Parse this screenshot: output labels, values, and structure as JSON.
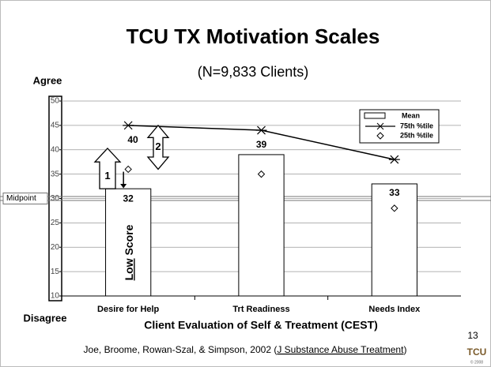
{
  "chart_data": {
    "type": "bar",
    "title": "TCU TX Motivation Scales",
    "subtitle": "(N=9,833 Clients)",
    "y_top_label": "Agree",
    "y_bottom_label": "Disagree",
    "x_label": "Client Evaluation of Self & Treatment (CEST)",
    "categories": [
      "Desire for Help",
      "Trt Readiness",
      "Needs Index"
    ],
    "series": [
      {
        "name": "Mean",
        "color": "#ffffff",
        "values": [
          32,
          39,
          33
        ]
      },
      {
        "name": "75th %tile",
        "color": "#000000",
        "values": [
          45,
          44,
          38
        ]
      },
      {
        "name": "25th %tile",
        "color": "#000000",
        "values": [
          36,
          35,
          28
        ]
      }
    ],
    "ylim": [
      10,
      50
    ],
    "yticks": [
      10,
      15,
      20,
      25,
      30,
      35,
      40,
      45,
      50
    ],
    "grid": true,
    "legend": "upper right",
    "midpoint": {
      "label": "Midpoint",
      "value": 30
    },
    "annotations": {
      "gap_label": "40",
      "arrow_1": "1",
      "arrow_2": "2",
      "low": "Low",
      "score": "Score"
    },
    "page_number": "13",
    "citation": {
      "before": "Joe, Broome, Rowan-Szal, & Simpson, 2002 (",
      "journal": "J Substance Abuse Treatment",
      "after": ")"
    },
    "logo": {
      "text": "TCU",
      "year": "© 2008"
    }
  }
}
